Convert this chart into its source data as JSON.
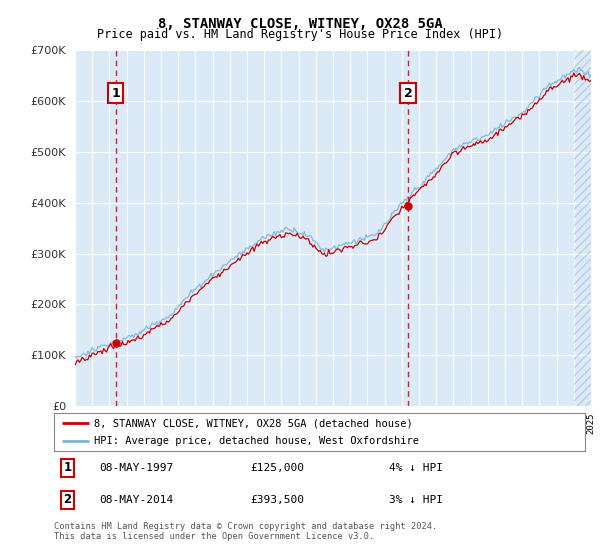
{
  "title": "8, STANWAY CLOSE, WITNEY, OX28 5GA",
  "subtitle": "Price paid vs. HM Land Registry's House Price Index (HPI)",
  "legend_line1": "8, STANWAY CLOSE, WITNEY, OX28 5GA (detached house)",
  "legend_line2": "HPI: Average price, detached house, West Oxfordshire",
  "annotation1_date": "08-MAY-1997",
  "annotation1_price": "£125,000",
  "annotation1_hpi": "4% ↓ HPI",
  "annotation2_date": "08-MAY-2014",
  "annotation2_price": "£393,500",
  "annotation2_hpi": "3% ↓ HPI",
  "footer": "Contains HM Land Registry data © Crown copyright and database right 2024.\nThis data is licensed under the Open Government Licence v3.0.",
  "sale1_year": 1997.36,
  "sale1_value": 125000,
  "sale2_year": 2014.36,
  "sale2_value": 393500,
  "ylim": [
    0,
    700000
  ],
  "hpi_color": "#7ab4d8",
  "price_color": "#cc0000",
  "bg_color": "#dce9f7",
  "hatch_color": "#aac4dc",
  "ylabel_color": "#333333",
  "grid_color": "#ffffff"
}
